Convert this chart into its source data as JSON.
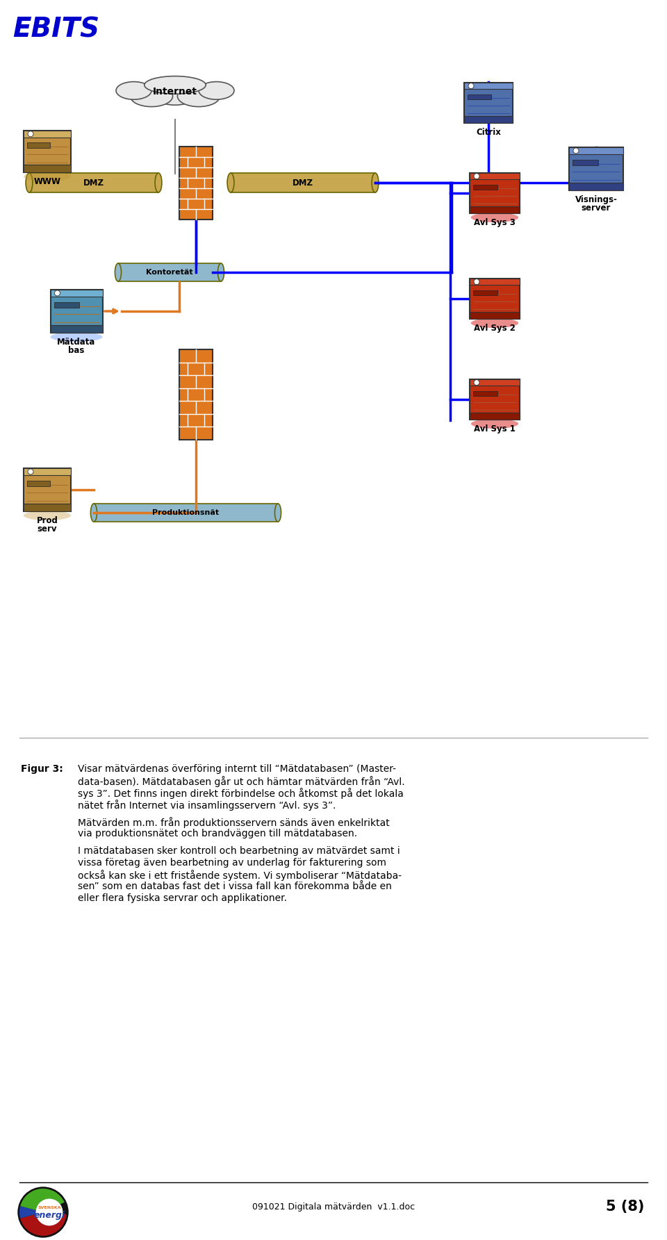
{
  "title": "EBITS",
  "title_color": "#0000CC",
  "bg_color": "#FFFFFF",
  "footer_doc": "091021 Digitala mätvärden  v1.1.doc",
  "footer_page": "5 (8)",
  "fig3_label": "Figur 3:",
  "fig3_text1": "Visar mätvärdenas överföring internt till “Mätdatabasen” (Master-",
  "fig3_text2": "data-basen). Mätdatabasen går ut och hämtar mätvärden från “Avl.",
  "fig3_text3": "sys 3”. Det finns ingen direkt förbindelse och åtkomst på det lokala",
  "fig3_text4": "nätet från Internet via insamlingsservern “Avl. sys 3”.",
  "fig3_text5": "Mätvärden m.m. från produktionsservern sänds även enkelriktat",
  "fig3_text6": "via produktionsnätet och brandväggen till mätdatabasen.",
  "fig3_text7": "I mätdatabasen sker kontroll och bearbetning av mätvärdet samt i",
  "fig3_text8": "vissa företag även bearbetning av underlag för fakturering som",
  "fig3_text9": "också kan ske i ett fristående system. Vi symboliserar “Mätdataba-",
  "fig3_text10": "sen” som en databas fast det i vissa fall kan förekomma både en",
  "fig3_text11": "eller flera fysiska servrar och applikationer.",
  "firewall_color": "#E07820",
  "line_blue": "#0000FF",
  "line_orange": "#E07820",
  "line_gray": "#808080",
  "cloud_fill": "#E8E8E8",
  "cloud_edge": "#555555"
}
